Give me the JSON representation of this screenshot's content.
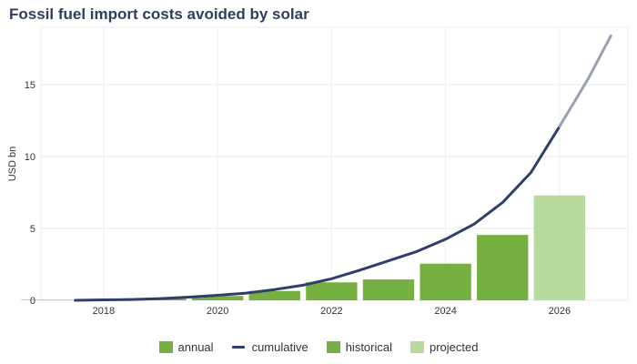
{
  "chart_data": {
    "type": "bar",
    "title": "Fossil fuel import costs avoided by solar",
    "ylabel": "USD bn",
    "xlabel": "",
    "xlim": [
      2016.9,
      2027.2
    ],
    "ylim": [
      0,
      19
    ],
    "x_ticks": [
      2018,
      2020,
      2022,
      2024,
      2026
    ],
    "y_ticks": [
      0,
      5,
      10,
      15
    ],
    "grid": true,
    "legend_position": "bottom",
    "bar_series": [
      {
        "name": "historical",
        "color": "#76b041",
        "x": [
          2017,
          2018,
          2019,
          2020,
          2021,
          2022,
          2023,
          2024,
          2025
        ],
        "values": [
          0.03,
          0.05,
          0.1,
          0.3,
          0.65,
          1.25,
          1.45,
          2.55,
          4.55
        ]
      },
      {
        "name": "projected",
        "color": "#b7db9c",
        "x": [
          2026
        ],
        "values": [
          7.3
        ]
      }
    ],
    "line_series": [
      {
        "name": "cumulative",
        "color": "#2f3e6b",
        "x": [
          2017.5,
          2018,
          2018.5,
          2019,
          2019.5,
          2020,
          2020.5,
          2021,
          2021.5,
          2022,
          2022.5,
          2023,
          2023.5,
          2024,
          2024.5,
          2025,
          2025.5,
          2026
        ],
        "values": [
          0.0,
          0.03,
          0.06,
          0.12,
          0.22,
          0.35,
          0.5,
          0.75,
          1.05,
          1.5,
          2.1,
          2.75,
          3.4,
          4.25,
          5.3,
          6.8,
          8.9,
          12.1
        ]
      },
      {
        "name": "cumulative-projected",
        "color": "#9aa2b2",
        "x": [
          2026,
          2026.5,
          2026.9
        ],
        "values": [
          12.1,
          15.4,
          18.4
        ]
      }
    ],
    "legend": [
      {
        "label": "annual",
        "kind": "box",
        "color": "#76b041"
      },
      {
        "label": "cumulative",
        "kind": "line",
        "color": "#2f3e6b"
      },
      {
        "label": "historical",
        "kind": "box",
        "color": "#76b041"
      },
      {
        "label": "projected",
        "kind": "box",
        "color": "#b7db9c"
      }
    ]
  }
}
